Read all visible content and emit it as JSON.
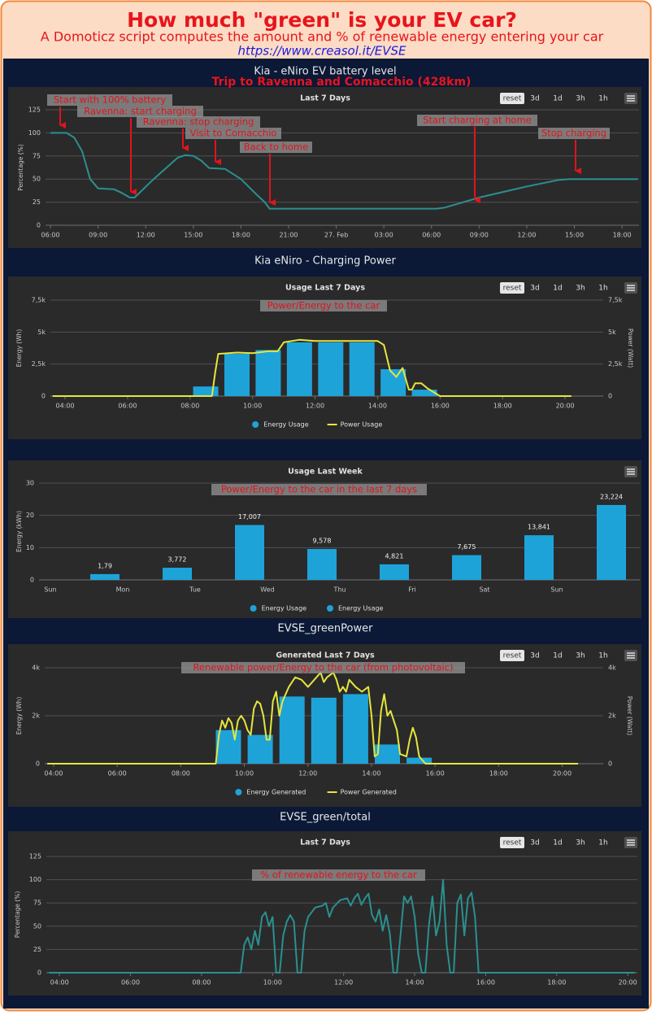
{
  "header": {
    "title": "How much \"green\" is your EV car?",
    "subtitle": "A Domoticz script computes the amount and % of renewable energy entering your car",
    "url": "https://www.creasol.it/EVSE"
  },
  "chart_data": [
    {
      "type": "line",
      "heading": "Kia - eNiro EV battery level",
      "subheading": "Trip to Ravenna and Comacchio (428km)",
      "title": "Last 7 Days",
      "buttons": [
        "reset",
        "3d",
        "1d",
        "3h",
        "1h"
      ],
      "annotations": [
        "Start with 100% battery",
        "Ravenna: start charging",
        "Ravenna: stop charging",
        "Visit to Comacchio",
        "Back to home",
        "Start charging at home",
        "Stop charging"
      ],
      "ylabel": "Percentage (%)",
      "grid": true,
      "xlim": [
        5.69,
        43.07
      ],
      "xticks": [
        {
          "value": 6,
          "label": "06:00"
        },
        {
          "value": 9,
          "label": "09:00"
        },
        {
          "value": 12,
          "label": "12:00"
        },
        {
          "value": 15,
          "label": "15:00"
        },
        {
          "value": 18,
          "label": "18:00"
        },
        {
          "value": 21,
          "label": "21:00"
        },
        {
          "value": 24,
          "label": "27. Feb"
        },
        {
          "value": 27,
          "label": "03:00"
        },
        {
          "value": 30,
          "label": "06:00"
        },
        {
          "value": 33,
          "label": "09:00"
        },
        {
          "value": 36,
          "label": "12:00"
        },
        {
          "value": 39,
          "label": "15:00"
        },
        {
          "value": 42,
          "label": "18:00"
        }
      ],
      "ylim": [
        0,
        125
      ],
      "yticks": [
        0,
        25,
        50,
        75,
        100,
        125
      ],
      "series": [
        {
          "type": "line",
          "color": "#2b908f",
          "x": [
            6.0,
            7.0,
            7.5,
            8.0,
            8.5,
            9.0,
            10.0,
            10.5,
            11.0,
            11.3,
            12.5,
            14.0,
            14.5,
            15.0,
            15.5,
            16.0,
            17.0,
            18.0,
            19.0,
            19.5,
            19.8,
            20.0,
            30.3,
            30.8,
            33.0,
            36.0,
            38.0,
            38.7,
            40.0,
            43.0
          ],
          "values": [
            100,
            100,
            95,
            80,
            50,
            40,
            39,
            35,
            30,
            30,
            50,
            73,
            76,
            75,
            70,
            62,
            61,
            50,
            33,
            25,
            18,
            18,
            18,
            19,
            30,
            42,
            49,
            50,
            50,
            50
          ]
        }
      ]
    },
    {
      "type": "combo",
      "heading": "Kia eNiro - Charging Power",
      "title": "Usage Last 7 Days",
      "buttons": [
        "reset",
        "3d",
        "1d",
        "3h",
        "1h"
      ],
      "annotations": [
        "Power/Energy to the car"
      ],
      "ylabel": "Energy (Wh)",
      "y2label": "Power (Watt)",
      "grid": true,
      "xlim": [
        3.53,
        21.22
      ],
      "xticks": [
        {
          "value": 4,
          "label": "04:00"
        },
        {
          "value": 6,
          "label": "06:00"
        },
        {
          "value": 8,
          "label": "08:00"
        },
        {
          "value": 10,
          "label": "10:00"
        },
        {
          "value": 12,
          "label": "12:00"
        },
        {
          "value": 14,
          "label": "14:00"
        },
        {
          "value": 16,
          "label": "16:00"
        },
        {
          "value": 18,
          "label": "18:00"
        },
        {
          "value": 20,
          "label": "20:00"
        }
      ],
      "ylim": [
        0,
        7500
      ],
      "yticks": [
        0,
        {
          "value": 2500,
          "label": "2,5k"
        },
        {
          "value": 5000,
          "label": "5k"
        },
        {
          "value": 7500,
          "label": "7,5k"
        }
      ],
      "y2lim": [
        0,
        7500
      ],
      "y2ticks": [
        0,
        {
          "value": 2500,
          "label": "2,5k"
        },
        {
          "value": 5000,
          "label": "5k"
        },
        {
          "value": 7500,
          "label": "7,5k"
        }
      ],
      "series": [
        {
          "type": "bar",
          "name": "Energy Usage",
          "color": "#1ea3d9",
          "x": [
            8.5,
            9.5,
            10.5,
            11.5,
            12.5,
            13.5,
            14.5,
            15.5
          ],
          "values": [
            750,
            3300,
            3600,
            4200,
            4200,
            4200,
            2100,
            500
          ]
        },
        {
          "type": "line",
          "name": "Power Usage",
          "color": "#e6e63c",
          "axis": "y2",
          "x": [
            3.6,
            8.7,
            8.8,
            8.9,
            9.5,
            10.0,
            10.5,
            10.8,
            11.0,
            11.5,
            12.0,
            13.0,
            14.0,
            14.2,
            14.4,
            14.6,
            14.8,
            15.0,
            15.1,
            15.2,
            15.4,
            15.6,
            16.0,
            20.2
          ],
          "values": [
            0,
            0,
            1800,
            3300,
            3400,
            3350,
            3500,
            3500,
            4200,
            4400,
            4300,
            4300,
            4300,
            4000,
            2000,
            1500,
            2200,
            500,
            500,
            1000,
            1000,
            600,
            0,
            0
          ]
        }
      ]
    },
    {
      "type": "bar",
      "title": "Usage Last Week",
      "annotations": [
        "Power/Energy to the car in the last 7 days"
      ],
      "ylabel": "Energy (kWh)",
      "grid": true,
      "categories": [
        "Sun",
        "Mon",
        "Tue",
        "Wed",
        "Thu",
        "Fri",
        "Sat",
        "Sun",
        null
      ],
      "ylim": [
        0,
        30
      ],
      "yticks": [
        0,
        10,
        20,
        30
      ],
      "series": [
        {
          "name": "Energy Usage",
          "color": "#1ea3d9",
          "values": [
            null,
            1.79,
            3.772,
            17.007,
            9.578,
            4.821,
            7.675,
            13.841,
            23.224
          ],
          "value_labels": [
            null,
            "1,79",
            "3,772",
            "17,007",
            "9,578",
            "4,821",
            "7,675",
            "13,841",
            "23,224"
          ]
        },
        {
          "name": "Energy Usage",
          "color": "#1ea3d9"
        }
      ]
    },
    {
      "type": "combo",
      "heading": "EVSE_greenPower",
      "title": "Generated Last 7 Days",
      "buttons": [
        "reset",
        "3d",
        "1d",
        "3h",
        "1h"
      ],
      "annotations": [
        "Renewable power/Energy to the car (from photovoltaic)"
      ],
      "ylabel": "Energy (Wh)",
      "y2label": "Power (Watt)",
      "grid": true,
      "xlim": [
        3.72,
        21.29
      ],
      "xticks": [
        {
          "value": 4,
          "label": "04:00"
        },
        {
          "value": 6,
          "label": "06:00"
        },
        {
          "value": 8,
          "label": "08:00"
        },
        {
          "value": 10,
          "label": "10:00"
        },
        {
          "value": 12,
          "label": "12:00"
        },
        {
          "value": 14,
          "label": "14:00"
        },
        {
          "value": 16,
          "label": "16:00"
        },
        {
          "value": 18,
          "label": "18:00"
        },
        {
          "value": 20,
          "label": "20:00"
        }
      ],
      "ylim": [
        0,
        4000
      ],
      "yticks": [
        0,
        {
          "value": 2000,
          "label": "2k"
        },
        {
          "value": 4000,
          "label": "4k"
        }
      ],
      "y2lim": [
        0,
        4000
      ],
      "y2ticks": [
        0,
        {
          "value": 2000,
          "label": "2k"
        },
        {
          "value": 4000,
          "label": "4k"
        }
      ],
      "series": [
        {
          "type": "bar",
          "name": "Energy Generated",
          "color": "#1ea3d9",
          "x": [
            9.5,
            10.5,
            11.5,
            12.5,
            13.5,
            14.5,
            15.5
          ],
          "values": [
            1400,
            1200,
            2800,
            2750,
            2900,
            800,
            250
          ]
        },
        {
          "type": "line",
          "name": "Power Generated",
          "color": "#e6e63c",
          "axis": "y2",
          "x": [
            3.8,
            9.1,
            9.2,
            9.3,
            9.4,
            9.5,
            9.6,
            9.7,
            9.8,
            9.9,
            10.0,
            10.1,
            10.2,
            10.3,
            10.4,
            10.5,
            10.6,
            10.7,
            10.8,
            10.9,
            11.0,
            11.1,
            11.2,
            11.4,
            11.6,
            11.8,
            12.0,
            12.2,
            12.4,
            12.5,
            12.6,
            12.8,
            12.9,
            13.0,
            13.1,
            13.2,
            13.3,
            13.5,
            13.7,
            13.9,
            14.0,
            14.1,
            14.2,
            14.3,
            14.4,
            14.5,
            14.6,
            14.8,
            14.9,
            15.1,
            15.2,
            15.3,
            15.4,
            15.5,
            15.7,
            20.5
          ],
          "values": [
            0,
            0,
            1200,
            1800,
            1500,
            1900,
            1700,
            1000,
            1800,
            2000,
            1800,
            1400,
            1200,
            2300,
            2600,
            2500,
            2000,
            1000,
            1000,
            2600,
            3000,
            2000,
            2600,
            3200,
            3600,
            3500,
            3200,
            3500,
            3800,
            3400,
            3600,
            3800,
            3500,
            3000,
            3200,
            3000,
            3500,
            3200,
            3000,
            3200,
            2000,
            300,
            400,
            2200,
            2900,
            2000,
            2200,
            1400,
            400,
            300,
            1000,
            1500,
            1100,
            300,
            0,
            0
          ]
        }
      ]
    },
    {
      "type": "line",
      "heading": "EVSE_green/total",
      "title": "Last 7 Days",
      "buttons": [
        "reset",
        "3d",
        "1d",
        "3h",
        "1h"
      ],
      "annotations": [
        "% of renewable energy to the car"
      ],
      "ylabel": "Percentage (%)",
      "grid": true,
      "xlim": [
        3.63,
        20.27
      ],
      "xticks": [
        {
          "value": 4,
          "label": "04:00"
        },
        {
          "value": 6,
          "label": "06:00"
        },
        {
          "value": 8,
          "label": "08:00"
        },
        {
          "value": 10,
          "label": "10:00"
        },
        {
          "value": 12,
          "label": "12:00"
        },
        {
          "value": 14,
          "label": "14:00"
        },
        {
          "value": 16,
          "label": "16:00"
        },
        {
          "value": 18,
          "label": "18:00"
        },
        {
          "value": 20,
          "label": "20:00"
        }
      ],
      "ylim": [
        0,
        125
      ],
      "yticks": [
        0,
        25,
        50,
        75,
        100,
        125
      ],
      "series": [
        {
          "type": "line",
          "color": "#2b908f",
          "x": [
            3.7,
            9.1,
            9.2,
            9.3,
            9.4,
            9.5,
            9.6,
            9.7,
            9.8,
            9.9,
            10.0,
            10.1,
            10.2,
            10.3,
            10.4,
            10.5,
            10.6,
            10.7,
            10.8,
            10.9,
            11.0,
            11.2,
            11.4,
            11.5,
            11.6,
            11.7,
            11.9,
            12.1,
            12.2,
            12.3,
            12.4,
            12.5,
            12.6,
            12.7,
            12.8,
            12.9,
            13.0,
            13.1,
            13.2,
            13.3,
            13.4,
            13.5,
            13.6,
            13.7,
            13.8,
            13.9,
            14.0,
            14.1,
            14.2,
            14.3,
            14.4,
            14.5,
            14.6,
            14.7,
            14.8,
            14.9,
            15.0,
            15.1,
            15.2,
            15.3,
            15.4,
            15.5,
            15.6,
            15.7,
            15.8,
            20.2
          ],
          "values": [
            0,
            0,
            30,
            38,
            25,
            45,
            30,
            60,
            65,
            50,
            60,
            0,
            0,
            40,
            55,
            62,
            55,
            0,
            0,
            45,
            60,
            70,
            72,
            75,
            60,
            70,
            78,
            80,
            72,
            80,
            85,
            73,
            80,
            85,
            62,
            55,
            68,
            45,
            62,
            42,
            0,
            0,
            40,
            82,
            75,
            82,
            60,
            20,
            0,
            0,
            50,
            82,
            40,
            55,
            100,
            30,
            0,
            0,
            75,
            84,
            40,
            80,
            86,
            60,
            0,
            0
          ]
        }
      ]
    }
  ]
}
